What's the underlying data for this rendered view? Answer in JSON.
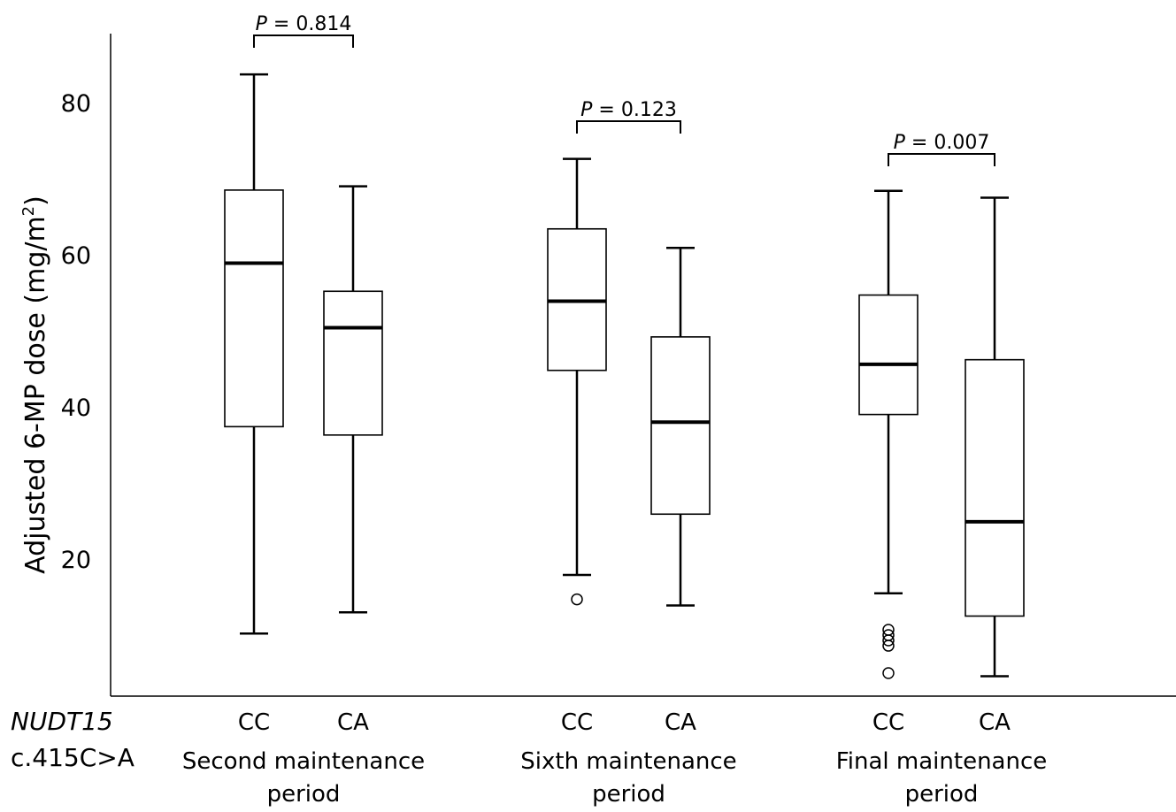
{
  "chart_data": {
    "type": "boxplot",
    "ylabel": "Adjusted 6-MP dose (mg/m",
    "ylabel_sup": "2",
    "ylabel_end": ")",
    "yticks": [
      20,
      40,
      60,
      80
    ],
    "ylim": [
      3,
      90
    ],
    "genotype_label_line1": "NUDT15",
    "genotype_label_line2": "c.415C>A",
    "groups": [
      {
        "period_line1": "Second  maintenance",
        "period_line2": "period",
        "p_label": "P",
        "p_value": "=  0.814",
        "boxes": [
          {
            "category": "CC",
            "min": 10.2,
            "q1": 37.4,
            "median": 58.9,
            "q3": 68.5,
            "max": 83.7,
            "outliers": []
          },
          {
            "category": "CA",
            "min": 13.0,
            "q1": 36.3,
            "median": 50.4,
            "q3": 55.2,
            "max": 69.0,
            "outliers": []
          }
        ]
      },
      {
        "period_line1": "Sixth  maintenance",
        "period_line2": "period",
        "p_label": "P",
        "p_value": "=  0.123",
        "boxes": [
          {
            "category": "CC",
            "min": 17.9,
            "q1": 44.8,
            "median": 53.9,
            "q3": 63.4,
            "max": 72.6,
            "outliers": [
              14.7
            ]
          },
          {
            "category": "CA",
            "min": 13.9,
            "q1": 25.9,
            "median": 38.0,
            "q3": 49.2,
            "max": 60.9,
            "outliers": []
          }
        ]
      },
      {
        "period_line1": "Final  maintenance",
        "period_line2": "period",
        "p_label": "P",
        "p_value": "=  0.007",
        "boxes": [
          {
            "category": "CC",
            "min": 15.5,
            "q1": 39.0,
            "median": 45.6,
            "q3": 54.7,
            "max": 68.4,
            "outliers": [
              10.7,
              10.0,
              9.3,
              8.6,
              5.0
            ]
          },
          {
            "category": "CA",
            "min": 4.6,
            "q1": 12.5,
            "median": 24.9,
            "q3": 46.2,
            "max": 67.5,
            "outliers": []
          }
        ]
      }
    ]
  }
}
